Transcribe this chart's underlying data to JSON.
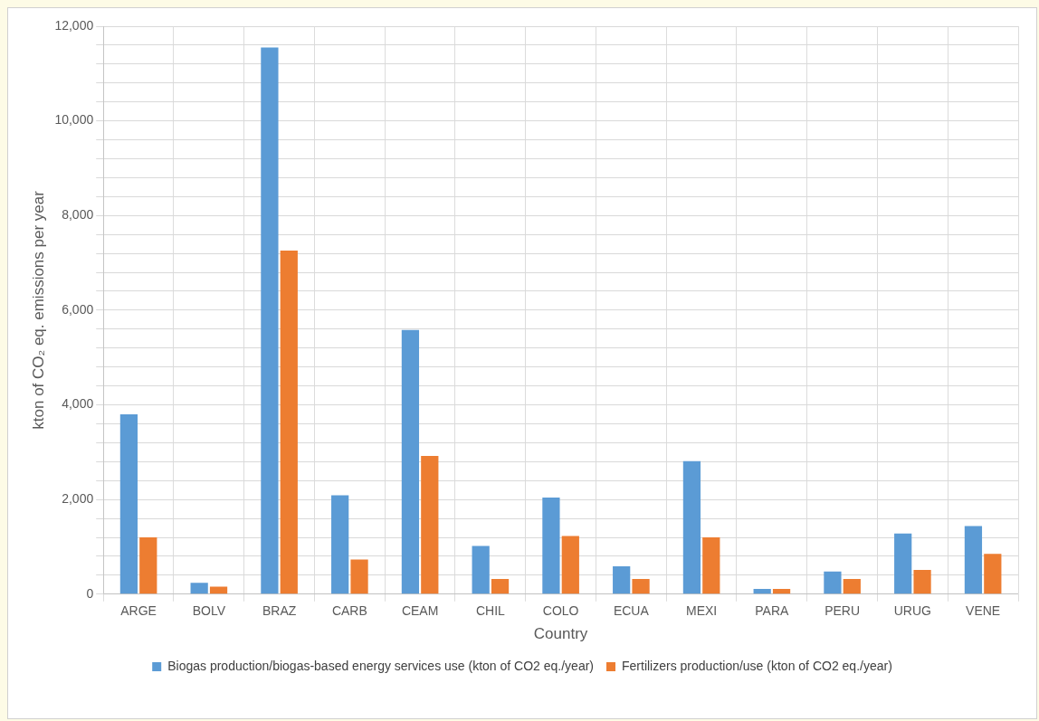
{
  "chart_data": {
    "type": "bar",
    "xlabel": "Country",
    "ylabel": "kton of CO₂ eq. emissions per year",
    "categories": [
      "ARGE",
      "BOLV",
      "BRAZ",
      "CARB",
      "CEAM",
      "CHIL",
      "COLO",
      "ECUA",
      "MEXI",
      "PARA",
      "PERU",
      "URUG",
      "VENE"
    ],
    "series": [
      {
        "name": "Biogas production/biogas-based energy services use (kton of CO2 eq./year)",
        "color": "#5b9bd5",
        "values": [
          3800,
          240,
          11550,
          2090,
          5580,
          1020,
          2040,
          590,
          2810,
          110,
          480,
          1280,
          1440
        ]
      },
      {
        "name": "Fertilizers production/use (kton of CO2 eq./year)",
        "color": "#ed7d31",
        "values": [
          1200,
          160,
          7260,
          730,
          2920,
          320,
          1230,
          320,
          1200,
          110,
          320,
          510,
          850
        ]
      }
    ],
    "ylim": [
      0,
      12000
    ],
    "yticks": [
      0,
      {
        "value": 400,
        "label": null
      },
      {
        "value": 800,
        "label": null
      },
      {
        "value": 1200,
        "label": null
      },
      {
        "value": 1600,
        "label": null
      },
      {
        "value": 2000,
        "label": "2,000"
      },
      {
        "value": 2400,
        "label": null
      },
      {
        "value": 2800,
        "label": null
      },
      {
        "value": 3200,
        "label": null
      },
      {
        "value": 3600,
        "label": null
      },
      {
        "value": 4000,
        "label": "4,000"
      },
      {
        "value": 4400,
        "label": null
      },
      {
        "value": 4800,
        "label": null
      },
      {
        "value": 5200,
        "label": null
      },
      {
        "value": 5600,
        "label": null
      },
      {
        "value": 6000,
        "label": "6,000"
      },
      {
        "value": 6400,
        "label": null
      },
      {
        "value": 6800,
        "label": null
      },
      {
        "value": 7200,
        "label": null
      },
      {
        "value": 7600,
        "label": null
      },
      {
        "value": 8000,
        "label": "8,000"
      },
      {
        "value": 8400,
        "label": null
      },
      {
        "value": 8800,
        "label": null
      },
      {
        "value": 9200,
        "label": null
      },
      {
        "value": 9600,
        "label": null
      },
      {
        "value": 10000,
        "label": "10,000"
      },
      {
        "value": 10400,
        "label": null
      },
      {
        "value": 10800,
        "label": null
      },
      {
        "value": 11200,
        "label": null
      },
      {
        "value": 11600,
        "label": null
      },
      {
        "value": 12000,
        "label": "12,000"
      }
    ],
    "grid": true,
    "legend": "bottom"
  }
}
